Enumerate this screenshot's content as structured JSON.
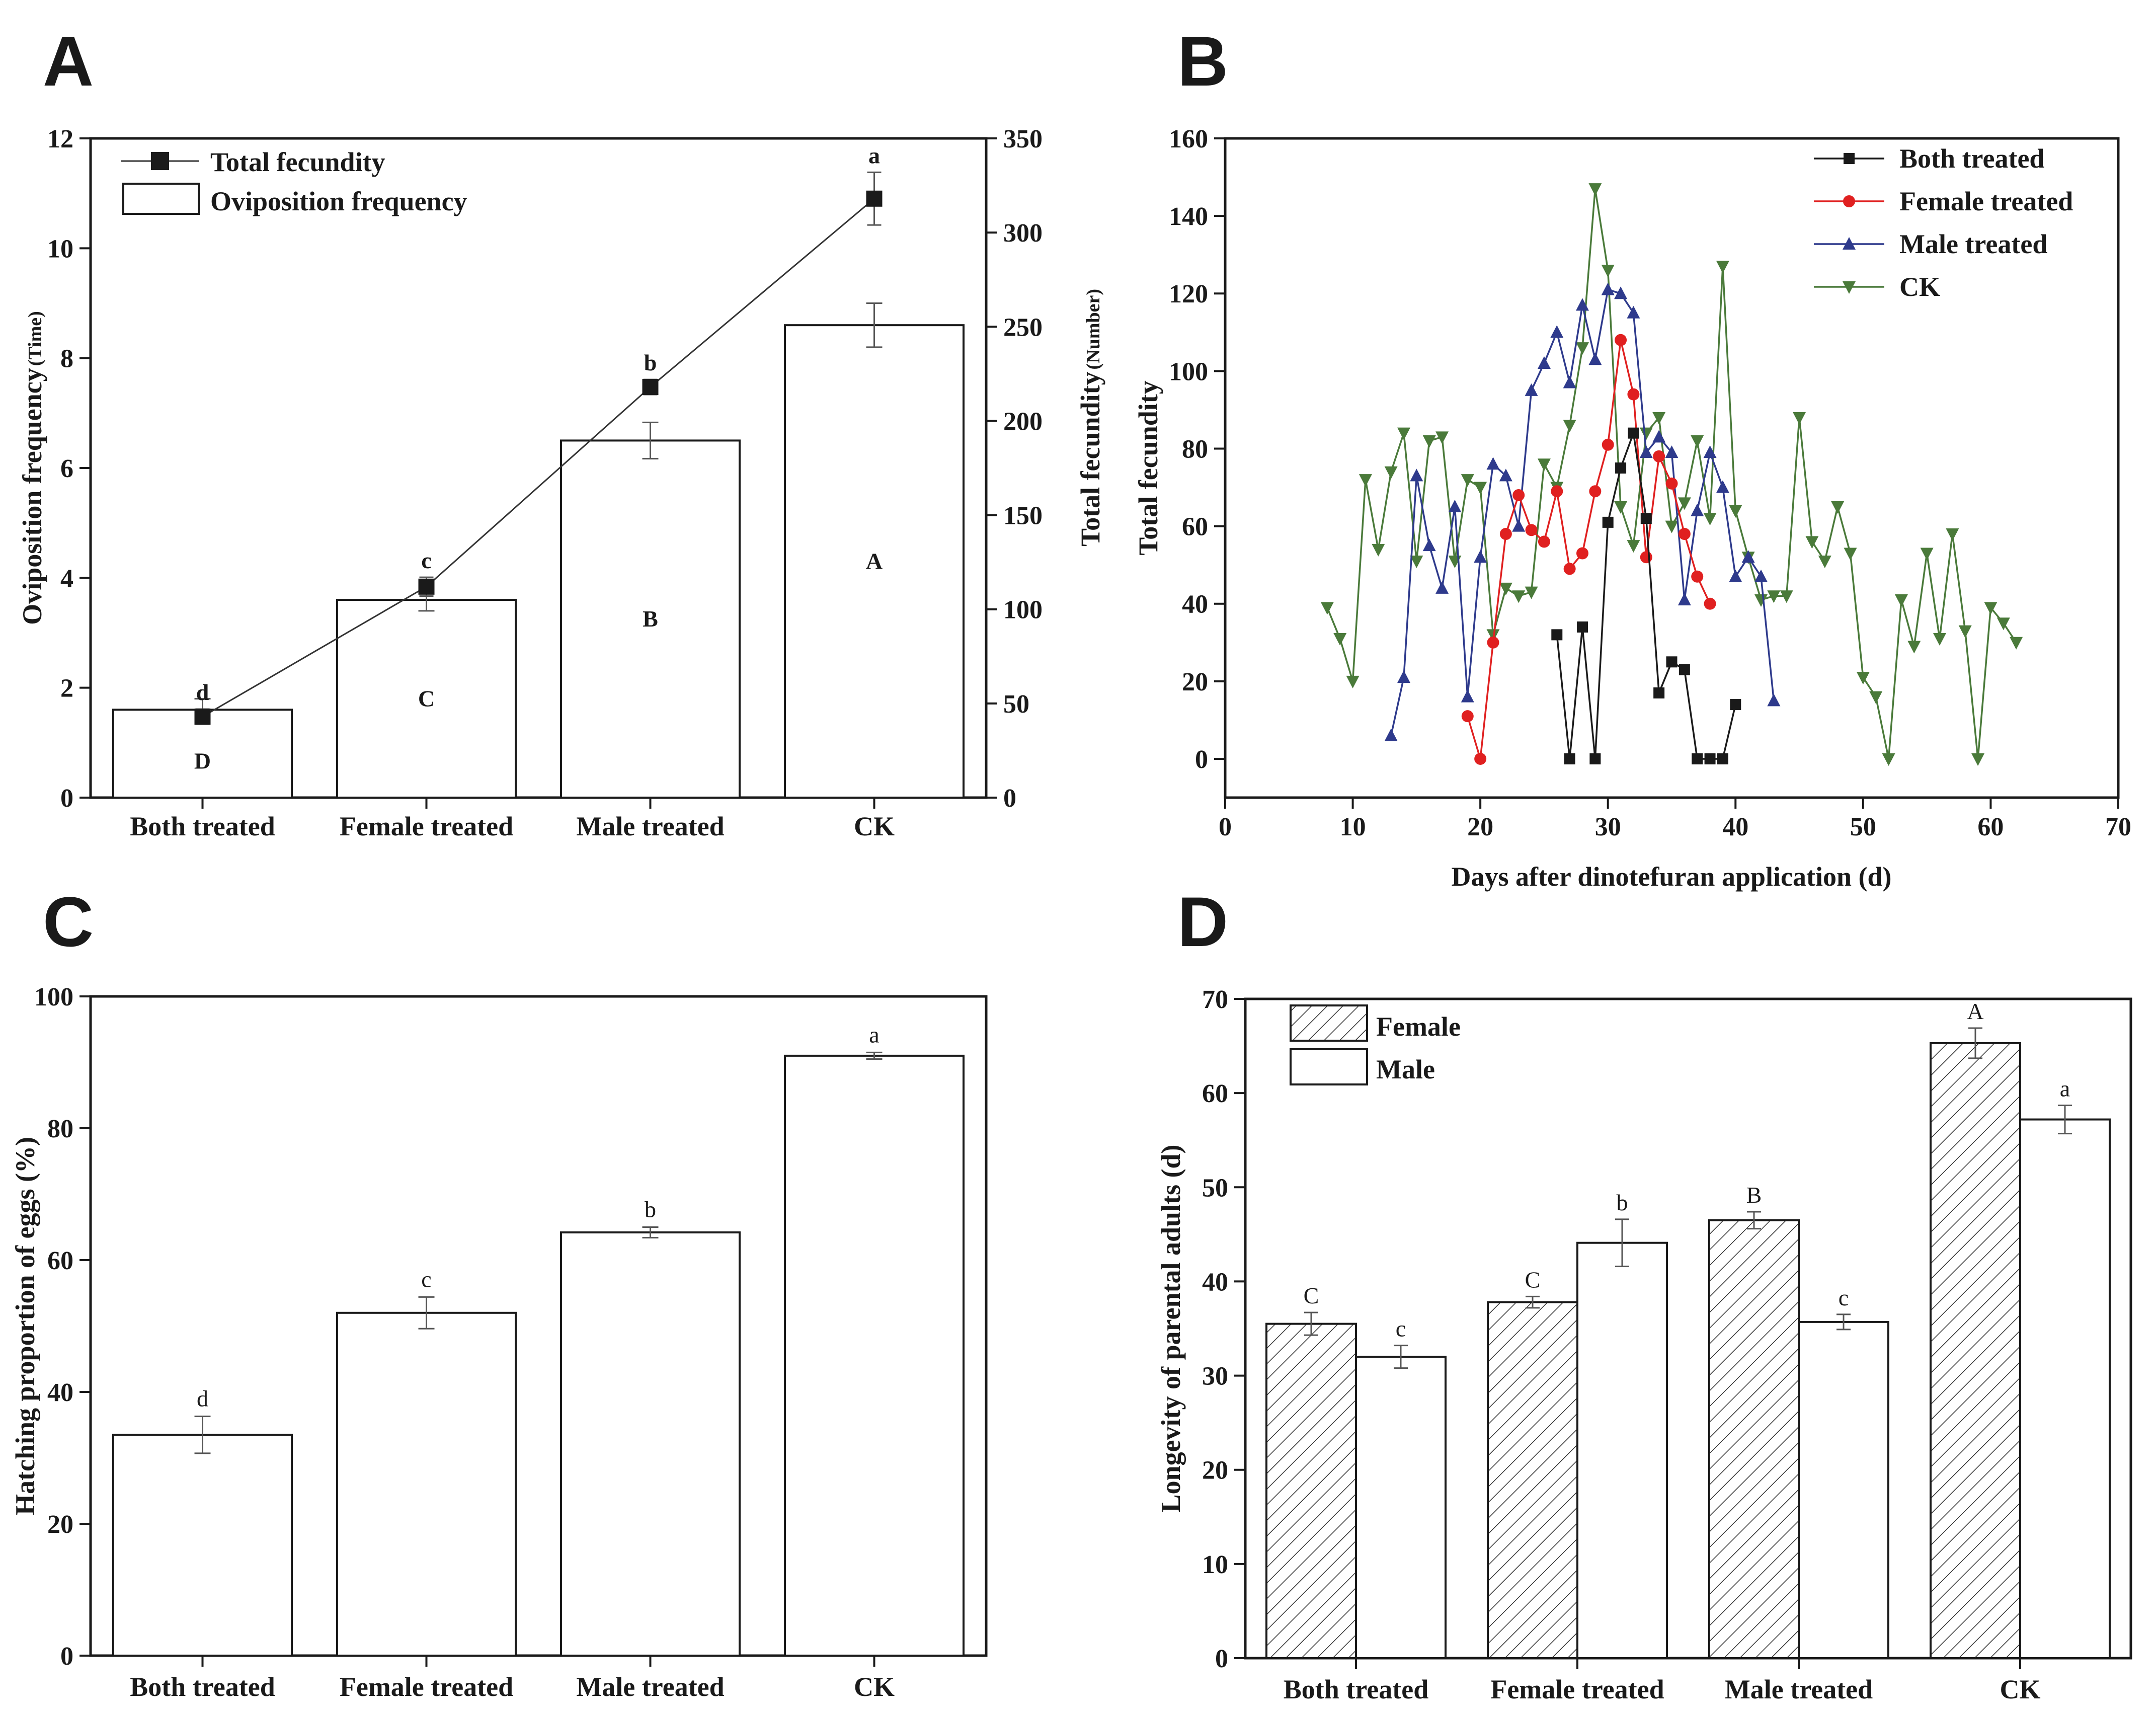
{
  "figure": {
    "panels": [
      "A",
      "B",
      "C",
      "D"
    ]
  },
  "chart_data": [
    {
      "panel": "A",
      "type": "bar",
      "categories": [
        "Both treated",
        "Female treated",
        "Male treated",
        "CK"
      ],
      "bar_series": {
        "name": "Oviposition frequency",
        "values": [
          1.6,
          3.6,
          6.5,
          8.6
        ],
        "errors": [
          0.2,
          0.2,
          0.33,
          0.4
        ],
        "letters": [
          "D",
          "C",
          "B",
          "A"
        ]
      },
      "line_series": {
        "name": "Total fecundity",
        "values": [
          43,
          112,
          218,
          318
        ],
        "errors": [
          4,
          5,
          4,
          14
        ],
        "letters": [
          "d",
          "c",
          "b",
          "a"
        ]
      },
      "ylabel": "Oviposition frequency",
      "ylabel_unit": "(Time)",
      "y2label": "Total fecundity",
      "y2label_unit": "(Number)",
      "ylim": [
        0,
        12
      ],
      "yticks": [
        "0",
        "2",
        "4",
        "6",
        "8",
        "10",
        "12"
      ],
      "y2lim": [
        0,
        350
      ],
      "y2ticks": [
        "0",
        "50",
        "100",
        "150",
        "200",
        "250",
        "300",
        "350"
      ]
    },
    {
      "panel": "B",
      "type": "line",
      "xlabel": "Days after dinotefuran  application (d)",
      "ylabel": "Total fecundity",
      "xlim": [
        0,
        70
      ],
      "ylim": [
        -10,
        160
      ],
      "xticks": [
        "0",
        "10",
        "20",
        "30",
        "40",
        "50",
        "60",
        "70"
      ],
      "yticks": [
        "0",
        "20",
        "40",
        "60",
        "80",
        "100",
        "120",
        "140",
        "160"
      ],
      "series": [
        {
          "name": "Both treated",
          "color": "#1a1a1a",
          "marker": "square",
          "x": [
            26,
            27,
            28,
            29,
            30,
            31,
            32,
            33,
            34,
            35,
            36,
            37,
            38,
            39,
            40
          ],
          "y": [
            32,
            0,
            34,
            0,
            61,
            75,
            84,
            62,
            17,
            25,
            23,
            0,
            0,
            0,
            14
          ]
        },
        {
          "name": "Female treated",
          "color": "#e02020",
          "marker": "circle",
          "x": [
            19,
            20,
            21,
            22,
            23,
            24,
            25,
            26,
            27,
            28,
            29,
            30,
            31,
            32,
            33,
            34,
            35,
            36,
            37,
            38
          ],
          "y": [
            11,
            0,
            30,
            58,
            68,
            59,
            56,
            69,
            49,
            53,
            69,
            81,
            108,
            94,
            52,
            78,
            71,
            58,
            47,
            40
          ]
        },
        {
          "name": "Male treated",
          "color": "#2e3a8c",
          "marker": "triangle-up",
          "x": [
            13,
            14,
            15,
            16,
            17,
            18,
            19,
            20,
            21,
            22,
            23,
            24,
            25,
            26,
            27,
            28,
            29,
            30,
            31,
            32,
            33,
            34,
            35,
            36,
            37,
            38,
            39,
            40,
            41,
            42,
            43
          ],
          "y": [
            6,
            21,
            73,
            55,
            44,
            65,
            16,
            52,
            76,
            73,
            60,
            95,
            102,
            110,
            97,
            117,
            103,
            121,
            120,
            115,
            79,
            83,
            79,
            41,
            64,
            79,
            70,
            47,
            52,
            47,
            15
          ]
        },
        {
          "name": "CK",
          "color": "#4a7a3a",
          "marker": "triangle-down",
          "x": [
            8,
            9,
            10,
            11,
            12,
            13,
            14,
            15,
            16,
            17,
            18,
            19,
            20,
            21,
            22,
            23,
            24,
            25,
            26,
            27,
            28,
            29,
            30,
            31,
            32,
            33,
            34,
            35,
            36,
            37,
            38,
            39,
            40,
            41,
            42,
            43,
            44,
            45,
            46,
            47,
            48,
            49,
            50,
            51,
            52,
            53,
            54,
            55,
            56,
            57,
            58,
            59,
            60,
            61,
            62
          ],
          "y": [
            39,
            31,
            20,
            72,
            54,
            74,
            84,
            51,
            82,
            83,
            51,
            72,
            70,
            32,
            44,
            42,
            43,
            76,
            70,
            86,
            106,
            147,
            126,
            65,
            55,
            84,
            88,
            60,
            66,
            82,
            62,
            127,
            64,
            52,
            41,
            42,
            42,
            88,
            56,
            51,
            65,
            53,
            21,
            16,
            0,
            41,
            29,
            53,
            31,
            58,
            33,
            0,
            39,
            35,
            30
          ]
        }
      ]
    },
    {
      "panel": "C",
      "type": "bar",
      "categories": [
        "Both treated",
        "Female treated",
        "Male treated",
        "CK"
      ],
      "values": [
        33.5,
        52,
        64.2,
        91
      ],
      "errors": [
        2.8,
        2.4,
        0.8,
        0.5
      ],
      "letters": [
        "d",
        "c",
        "b",
        "a"
      ],
      "ylabel": "Hatching proportion of eggs (%)",
      "ylim": [
        0,
        100
      ],
      "yticks": [
        "0",
        "20",
        "40",
        "60",
        "80",
        "100"
      ]
    },
    {
      "panel": "D",
      "type": "bar",
      "categories": [
        "Both treated",
        "Female treated",
        "Male treated",
        "CK"
      ],
      "series": [
        {
          "name": "Female",
          "pattern": "hatched",
          "values": [
            35.5,
            37.8,
            46.5,
            65.3
          ],
          "errors": [
            1.2,
            0.6,
            0.9,
            1.6
          ],
          "letters": [
            "C",
            "C",
            "B",
            "A"
          ]
        },
        {
          "name": "Male",
          "pattern": "plain",
          "values": [
            32,
            44.1,
            35.7,
            57.2
          ],
          "errors": [
            1.2,
            2.5,
            0.8,
            1.5
          ],
          "letters": [
            "c",
            "b",
            "c",
            "a"
          ]
        }
      ],
      "ylabel": "Longevity of parental adults (d)",
      "ylim": [
        0,
        70
      ],
      "yticks": [
        "0",
        "10",
        "20",
        "30",
        "40",
        "50",
        "60",
        "70"
      ]
    }
  ]
}
